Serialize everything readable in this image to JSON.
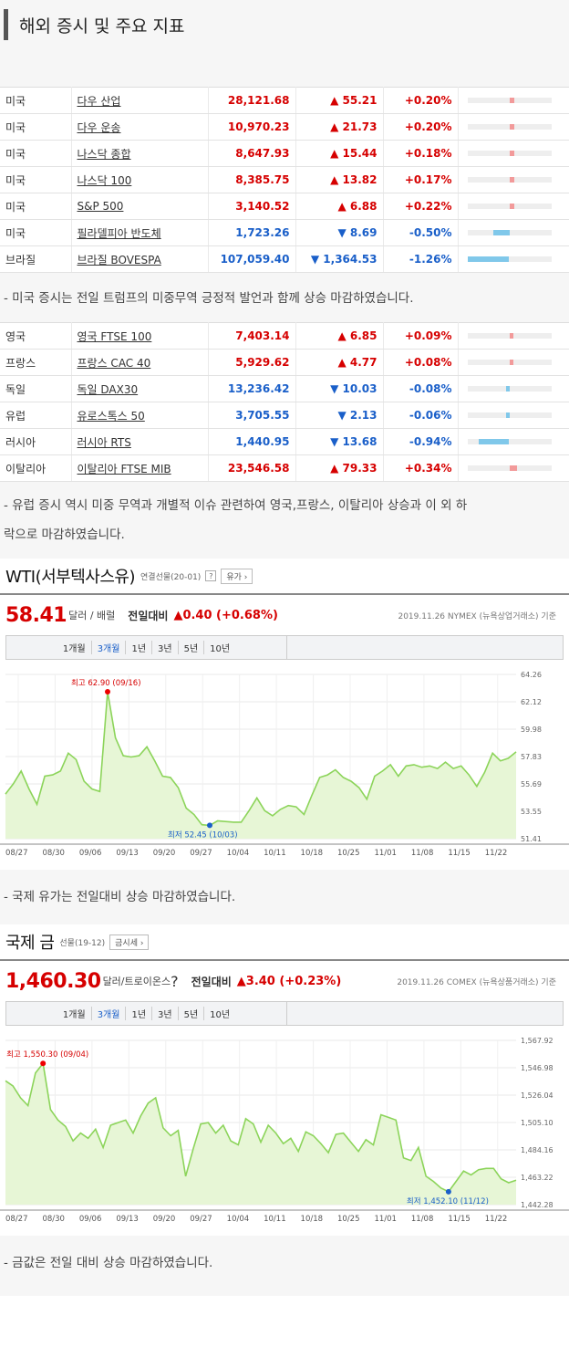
{
  "section_title": "해외 증시 및 주요 지표",
  "us_table": [
    {
      "country": "미국",
      "name": "다우 산업",
      "value": "28,121.68",
      "change": "▲ 55.21",
      "pct": "+0.20%",
      "dir": "up",
      "bar": 0.2
    },
    {
      "country": "미국",
      "name": "다우 운송",
      "value": "10,970.23",
      "change": "▲ 21.73",
      "pct": "+0.20%",
      "dir": "up",
      "bar": 0.2
    },
    {
      "country": "미국",
      "name": "나스닥 종합",
      "value": "8,647.93",
      "change": "▲ 15.44",
      "pct": "+0.18%",
      "dir": "up",
      "bar": 0.18
    },
    {
      "country": "미국",
      "name": "나스닥 100",
      "value": "8,385.75",
      "change": "▲ 13.82",
      "pct": "+0.17%",
      "dir": "up",
      "bar": 0.17
    },
    {
      "country": "미국",
      "name": "S&P 500",
      "value": "3,140.52",
      "change": "▲ 6.88",
      "pct": "+0.22%",
      "dir": "up",
      "bar": 0.22
    },
    {
      "country": "미국",
      "name": "필라델피아 반도체",
      "value": "1,723.26",
      "change": "▼ 8.69",
      "pct": "-0.50%",
      "dir": "dn",
      "bar": 0.5
    },
    {
      "country": "브라질",
      "name": "브라질 BOVESPA",
      "value": "107,059.40",
      "change": "▼ 1,364.53",
      "pct": "-1.26%",
      "dir": "dn",
      "bar": 1.26
    }
  ],
  "note_us": "- 미국 증시는 전일 트럼프의 미중무역 긍정적 발언과 함께 상승 마감하였습니다.",
  "eu_table": [
    {
      "country": "영국",
      "name": "영국 FTSE 100",
      "value": "7,403.14",
      "change": "▲ 6.85",
      "pct": "+0.09%",
      "dir": "up",
      "bar": 0.09
    },
    {
      "country": "프랑스",
      "name": "프랑스 CAC 40",
      "value": "5,929.62",
      "change": "▲ 4.77",
      "pct": "+0.08%",
      "dir": "up",
      "bar": 0.08
    },
    {
      "country": "독일",
      "name": "독일 DAX30",
      "value": "13,236.42",
      "change": "▼ 10.03",
      "pct": "-0.08%",
      "dir": "dn",
      "bar": 0.08
    },
    {
      "country": "유럽",
      "name": "유로스톡스 50",
      "value": "3,705.55",
      "change": "▼ 2.13",
      "pct": "-0.06%",
      "dir": "dn",
      "bar": 0.06
    },
    {
      "country": "러시아",
      "name": "러시아 RTS",
      "value": "1,440.95",
      "change": "▼ 13.68",
      "pct": "-0.94%",
      "dir": "dn",
      "bar": 0.94
    },
    {
      "country": "이탈리아",
      "name": "이탈리아 FTSE MIB",
      "value": "23,546.58",
      "change": "▲ 79.33",
      "pct": "+0.34%",
      "dir": "up",
      "bar": 0.34
    }
  ],
  "note_eu_1": "- 유럽 증시 역시 미중 무역과 개별적 이슈 관련하여 영국,프랑스, 이탈리아 상승과 이 외 하",
  "note_eu_2": "락으로 마감하였습니다.",
  "wti": {
    "title": "WTI(서부텍사스유)",
    "sub": "연결선물(20-01)",
    "q": "?",
    "btn": "유가 ›",
    "price": "58.41",
    "unit": "달러 / 배럴",
    "cmp_label": "전일대비",
    "cmp_value": "▲0.40 (+0.68%)",
    "source": "2019.11.26  NYMEX (뉴욕상업거래소) 기준",
    "tabs": [
      "1개월",
      "3개월",
      "1년",
      "3년",
      "5년",
      "10년"
    ],
    "active_tab": "3개월",
    "max_label": "최고 62.90 (09/16)",
    "min_label": "최저 52.45 (10/03)"
  },
  "note_wti": "- 국제 유가는 전일대비 상승 마감하였습니다.",
  "gold": {
    "title": "국제 금",
    "sub": "선물(19-12)",
    "btn": "금시세 ›",
    "price": "1,460.30",
    "unit": "달러/트로이온스",
    "q": "?",
    "cmp_label": "전일대비",
    "cmp_value": "▲3.40 (+0.23%)",
    "source": "2019.11.26  COMEX (뉴욕상품거래소) 기준",
    "tabs": [
      "1개월",
      "3개월",
      "1년",
      "3년",
      "5년",
      "10년"
    ],
    "active_tab": "3개월",
    "max_label": "최고 1,550.30 (09/04)",
    "min_label": "최저 1,452.10 (11/12)"
  },
  "note_gold": "- 금값은 전일 대비 상승 마감하였습니다.",
  "chart_data": [
    {
      "type": "area",
      "name": "wti",
      "x_ticks": [
        "08/27",
        "08/30",
        "09/06",
        "09/13",
        "09/20",
        "09/27",
        "10/04",
        "10/11",
        "10/18",
        "10/25",
        "11/01",
        "11/08",
        "11/15",
        "11/22"
      ],
      "y_ticks": [
        "64.26",
        "62.12",
        "59.98",
        "57.83",
        "55.69",
        "53.55",
        "51.41"
      ],
      "ylim": [
        51.41,
        64.26
      ],
      "values": [
        54.9,
        55.7,
        56.7,
        55.3,
        54.1,
        56.3,
        56.4,
        56.7,
        58.1,
        57.6,
        55.9,
        55.3,
        55.1,
        62.9,
        59.3,
        57.9,
        57.8,
        57.9,
        58.6,
        57.5,
        56.3,
        56.2,
        55.4,
        53.8,
        53.3,
        52.5,
        52.45,
        52.8,
        52.75,
        52.7,
        52.7,
        53.6,
        54.6,
        53.6,
        53.2,
        53.7,
        54.0,
        53.9,
        53.3,
        54.8,
        56.2,
        56.4,
        56.8,
        56.2,
        55.9,
        55.4,
        54.5,
        56.3,
        56.7,
        57.2,
        56.3,
        57.1,
        57.2,
        57.0,
        57.1,
        56.9,
        57.4,
        56.9,
        57.1,
        56.4,
        55.5,
        56.6,
        58.1,
        57.5,
        57.7,
        58.2
      ]
    },
    {
      "type": "area",
      "name": "gold",
      "x_ticks": [
        "08/27",
        "08/30",
        "09/06",
        "09/13",
        "09/20",
        "09/27",
        "10/04",
        "10/11",
        "10/18",
        "10/25",
        "11/01",
        "11/08",
        "11/15",
        "11/22"
      ],
      "y_ticks": [
        "1,567.92",
        "1,546.98",
        "1,526.04",
        "1,505.10",
        "1,484.16",
        "1,463.22",
        "1,442.28"
      ],
      "ylim": [
        1442.28,
        1567.92
      ],
      "values": [
        1537,
        1533,
        1524,
        1518,
        1543,
        1550.3,
        1515,
        1507,
        1502,
        1491,
        1497,
        1493,
        1500,
        1486,
        1503,
        1505,
        1507,
        1497,
        1510,
        1520,
        1524,
        1501,
        1495,
        1499,
        1464,
        1485,
        1504,
        1505,
        1497,
        1503,
        1491,
        1488,
        1508,
        1504,
        1490,
        1503,
        1497,
        1489,
        1493,
        1483,
        1498,
        1495,
        1489,
        1482,
        1496,
        1497,
        1490,
        1483,
        1492,
        1488,
        1511,
        1509,
        1507,
        1478,
        1476,
        1486,
        1464,
        1460,
        1455,
        1452.1,
        1460,
        1468,
        1465,
        1469,
        1470,
        1470,
        1462,
        1459,
        1461
      ]
    }
  ]
}
